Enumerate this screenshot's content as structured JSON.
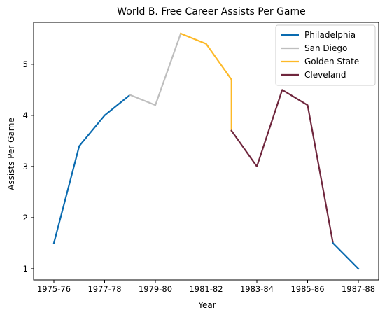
{
  "chart_data": {
    "type": "line",
    "title": "World B. Free Career Assists Per Game",
    "xlabel": "Year",
    "ylabel": "Assists Per Game",
    "x_tick_labels": [
      "1975-76",
      "1977-78",
      "1979-80",
      "1981-82",
      "1983-84",
      "1985-86",
      "1987-88"
    ],
    "x_tick_values": [
      0,
      2,
      4,
      6,
      8,
      10,
      12
    ],
    "y_ticks": [
      1,
      2,
      3,
      4,
      5
    ],
    "xlim": [
      -0.8,
      12.8
    ],
    "ylim": [
      0.78,
      5.82
    ],
    "legend_position": "top-right",
    "grid": false,
    "series": [
      {
        "name": "Philadelphia",
        "color": "#0a6bb0",
        "points": [
          [
            0,
            1.5
          ],
          [
            1,
            3.4
          ],
          [
            2,
            4.0
          ],
          [
            3,
            4.4
          ]
        ]
      },
      {
        "name": "San Diego",
        "color": "#bebebe",
        "points": [
          [
            3,
            4.4
          ],
          [
            4,
            4.2
          ],
          [
            5,
            5.6
          ]
        ]
      },
      {
        "name": "Golden State",
        "color": "#fdb927",
        "points": [
          [
            5,
            5.6
          ],
          [
            6,
            5.4
          ],
          [
            7,
            4.7
          ],
          [
            7,
            3.7
          ]
        ]
      },
      {
        "name": "Cleveland",
        "color": "#6f263d",
        "points": [
          [
            7,
            3.7
          ],
          [
            8,
            3.0
          ],
          [
            9,
            4.5
          ],
          [
            10,
            4.2
          ],
          [
            11,
            1.5
          ]
        ]
      },
      {
        "name": "Philadelphia",
        "color": "#0a6bb0",
        "in_legend": false,
        "points": [
          [
            11,
            1.5
          ],
          [
            12,
            1.0
          ]
        ]
      }
    ]
  }
}
